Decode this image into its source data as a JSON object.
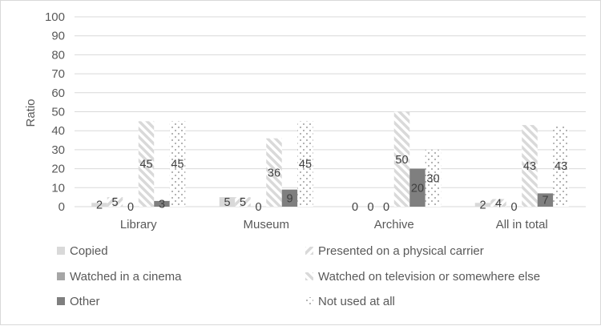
{
  "chart_data": {
    "type": "bar",
    "title": "",
    "xlabel": "",
    "ylabel": "Ratio",
    "ylim": [
      0,
      100
    ],
    "yticks": [
      0,
      10,
      20,
      30,
      40,
      50,
      60,
      70,
      80,
      90,
      100
    ],
    "grid": true,
    "legend_position": "bottom",
    "categories": [
      "Library",
      "Museum",
      "Archive",
      "All in total"
    ],
    "series": [
      {
        "name": "Copied",
        "values": [
          2,
          5,
          0,
          2
        ],
        "labels": [
          "2",
          "5",
          "0",
          "2"
        ],
        "color": "#d9d9d9",
        "pattern": "solid"
      },
      {
        "name": "Presented on a physical carrier",
        "values": [
          5,
          5,
          0,
          4
        ],
        "labels": [
          "5",
          "5",
          "0",
          "4"
        ],
        "color": "#d9d9d9",
        "pattern": "wide-upward-diagonal"
      },
      {
        "name": "Watched in a cinema",
        "values": [
          0,
          0,
          0,
          0
        ],
        "labels": [
          "0",
          "0",
          "0",
          "0"
        ],
        "color": "#a6a6a6",
        "pattern": "solid"
      },
      {
        "name": "Watched on television or somewhere else",
        "values": [
          45,
          36,
          50,
          43
        ],
        "labels": [
          "45",
          "36",
          "50",
          "43"
        ],
        "color": "#d9d9d9",
        "pattern": "wide-downward-diagonal"
      },
      {
        "name": "Other",
        "values": [
          3,
          9,
          20,
          7
        ],
        "labels": [
          "3",
          "9",
          "20",
          "7"
        ],
        "color": "#7f7f7f",
        "pattern": "solid"
      },
      {
        "name": "Not used at all",
        "values": [
          45,
          45,
          30,
          43
        ],
        "labels": [
          "45",
          "45",
          "30",
          "43"
        ],
        "color": "#a6a6a6",
        "pattern": "dotted"
      }
    ]
  }
}
